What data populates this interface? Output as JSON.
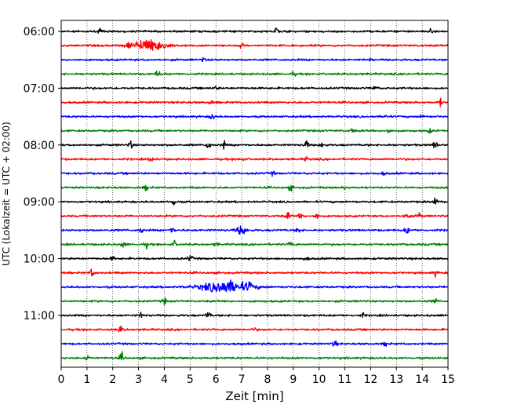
{
  "chart_data": {
    "type": "line",
    "title": "",
    "xlabel": "Zeit  [min]",
    "ylabel": "UTC (Lokalzeit = UTC + 02:00)",
    "xlim": [
      0,
      15
    ],
    "x_ticks": [
      "0",
      "1",
      "2",
      "3",
      "4",
      "5",
      "6",
      "7",
      "8",
      "9",
      "10",
      "11",
      "12",
      "13",
      "14",
      "15"
    ],
    "x_grid": true,
    "y_ticks": [
      {
        "label": "06:00",
        "trace": 0
      },
      {
        "label": "07:00",
        "trace": 4
      },
      {
        "label": "08:00",
        "trace": 8
      },
      {
        "label": "09:00",
        "trace": 12
      },
      {
        "label": "10:00",
        "trace": 16
      },
      {
        "label": "11:00",
        "trace": 20
      }
    ],
    "series_colors": [
      "#000000",
      "#ff0000",
      "#0000ff",
      "#008000"
    ],
    "traces": [
      {
        "start": "06:00",
        "color": "#000000",
        "events": [
          {
            "t": 1.5,
            "a": 2.5
          },
          {
            "t": 8.35,
            "a": 4.5
          },
          {
            "t": 14.3,
            "a": 2
          }
        ]
      },
      {
        "start": "06:15",
        "color": "#ff0000",
        "events": [
          {
            "t": 3.4,
            "a": 7.5,
            "w": 0.6
          },
          {
            "t": 2.6,
            "a": 3
          },
          {
            "t": 7.0,
            "a": 2
          }
        ]
      },
      {
        "start": "06:30",
        "color": "#0000ff",
        "events": [
          {
            "t": 5.5,
            "a": 2
          },
          {
            "t": 12.0,
            "a": 1.5
          }
        ]
      },
      {
        "start": "06:45",
        "color": "#008000",
        "events": [
          {
            "t": 3.75,
            "a": 4
          },
          {
            "t": 9.0,
            "a": 2
          }
        ]
      },
      {
        "start": "07:00",
        "color": "#000000",
        "events": [
          {
            "t": 12.2,
            "a": 3
          },
          {
            "t": 6.0,
            "a": 2
          }
        ]
      },
      {
        "start": "07:15",
        "color": "#ff0000",
        "events": [
          {
            "t": 14.7,
            "a": 4
          },
          {
            "t": 5.8,
            "a": 2
          }
        ]
      },
      {
        "start": "07:30",
        "color": "#0000ff",
        "events": [
          {
            "t": 5.85,
            "a": 4
          },
          {
            "t": 12.6,
            "a": 3
          },
          {
            "t": 14.0,
            "a": 2
          }
        ]
      },
      {
        "start": "07:45",
        "color": "#008000",
        "events": [
          {
            "t": 11.3,
            "a": 2.5
          },
          {
            "t": 12.7,
            "a": 3
          },
          {
            "t": 14.3,
            "a": 2
          }
        ]
      },
      {
        "start": "08:00",
        "color": "#000000",
        "events": [
          {
            "t": 2.7,
            "a": 4
          },
          {
            "t": 5.7,
            "a": 5
          },
          {
            "t": 6.3,
            "a": 4
          },
          {
            "t": 9.5,
            "a": 5
          },
          {
            "t": 10.1,
            "a": 4
          },
          {
            "t": 14.5,
            "a": 4
          }
        ]
      },
      {
        "start": "08:15",
        "color": "#ff0000",
        "events": [
          {
            "t": 3.5,
            "a": 4.5
          },
          {
            "t": 7.0,
            "a": 2
          },
          {
            "t": 9.5,
            "a": 2
          }
        ]
      },
      {
        "start": "08:30",
        "color": "#0000ff",
        "events": [
          {
            "t": 8.2,
            "a": 2
          },
          {
            "t": 12.5,
            "a": 1.5
          }
        ]
      },
      {
        "start": "08:45",
        "color": "#008000",
        "events": [
          {
            "t": 3.3,
            "a": 3
          },
          {
            "t": 8.9,
            "a": 3
          },
          {
            "t": 11.0,
            "a": 2
          }
        ]
      },
      {
        "start": "09:00",
        "color": "#000000",
        "events": [
          {
            "t": 4.35,
            "a": 4.5
          },
          {
            "t": 14.5,
            "a": 5
          }
        ]
      },
      {
        "start": "09:15",
        "color": "#ff0000",
        "events": [
          {
            "t": 8.8,
            "a": 4
          },
          {
            "t": 9.3,
            "a": 3.5
          },
          {
            "t": 9.9,
            "a": 4
          },
          {
            "t": 13.4,
            "a": 4
          },
          {
            "t": 13.9,
            "a": 3.5
          }
        ]
      },
      {
        "start": "09:30",
        "color": "#0000ff",
        "events": [
          {
            "t": 7.0,
            "a": 5,
            "w": 0.2
          },
          {
            "t": 4.3,
            "a": 4
          },
          {
            "t": 9.2,
            "a": 4
          },
          {
            "t": 13.4,
            "a": 4
          },
          {
            "t": 3.1,
            "a": 3
          }
        ]
      },
      {
        "start": "09:45",
        "color": "#008000",
        "events": [
          {
            "t": 2.4,
            "a": 3.5
          },
          {
            "t": 3.3,
            "a": 3
          },
          {
            "t": 4.4,
            "a": 3.5
          },
          {
            "t": 8.9,
            "a": 3
          },
          {
            "t": 6.0,
            "a": 2
          }
        ]
      },
      {
        "start": "10:00",
        "color": "#000000",
        "events": [
          {
            "t": 5.0,
            "a": 4
          },
          {
            "t": 2.0,
            "a": 2
          },
          {
            "t": 9.5,
            "a": 2.5
          }
        ]
      },
      {
        "start": "10:15",
        "color": "#ff0000",
        "events": [
          {
            "t": 1.2,
            "a": 4.5
          },
          {
            "t": 14.5,
            "a": 3
          }
        ]
      },
      {
        "start": "10:30",
        "color": "#0000ff",
        "events": [
          {
            "t": 6.4,
            "a": 7,
            "w": 0.9
          },
          {
            "t": 7.3,
            "a": 5
          }
        ]
      },
      {
        "start": "10:45",
        "color": "#008000",
        "events": [
          {
            "t": 4.0,
            "a": 3
          },
          {
            "t": 14.5,
            "a": 3
          }
        ]
      },
      {
        "start": "11:00",
        "color": "#000000",
        "events": [
          {
            "t": 5.7,
            "a": 4.5
          },
          {
            "t": 3.1,
            "a": 2.5
          },
          {
            "t": 11.7,
            "a": 2.5
          }
        ]
      },
      {
        "start": "11:15",
        "color": "#ff0000",
        "events": [
          {
            "t": 2.3,
            "a": 4
          },
          {
            "t": 7.5,
            "a": 2
          }
        ]
      },
      {
        "start": "11:30",
        "color": "#0000ff",
        "events": [
          {
            "t": 10.6,
            "a": 3.5
          },
          {
            "t": 12.6,
            "a": 3
          }
        ]
      },
      {
        "start": "11:45",
        "color": "#008000",
        "events": [
          {
            "t": 1.0,
            "a": 3.5
          },
          {
            "t": 2.35,
            "a": 5
          }
        ]
      }
    ]
  }
}
